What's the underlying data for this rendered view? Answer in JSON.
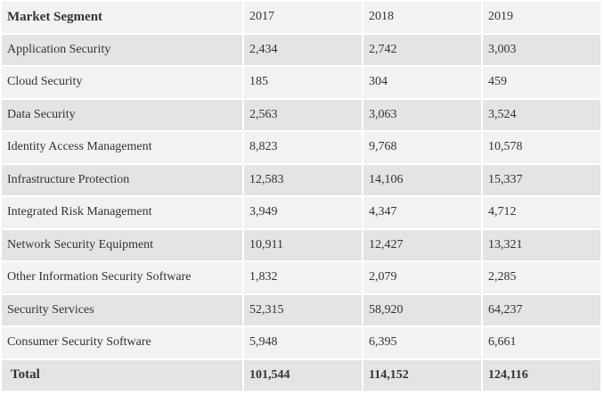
{
  "table": {
    "header": [
      "Market Segment",
      "2017",
      "2018",
      "2019"
    ],
    "rows": [
      [
        "Application Security",
        "2,434",
        "2,742",
        "3,003"
      ],
      [
        "Cloud Security",
        "185",
        "304",
        "459"
      ],
      [
        "Data Security",
        "2,563",
        "3,063",
        "3,524"
      ],
      [
        "Identity Access Management",
        "8,823",
        "9,768",
        "10,578"
      ],
      [
        "Infrastructure Protection",
        "12,583",
        "14,106",
        "15,337"
      ],
      [
        "Integrated Risk Management",
        "3,949",
        "4,347",
        "4,712"
      ],
      [
        "Network Security Equipment",
        "10,911",
        "12,427",
        "13,321"
      ],
      [
        "Other Information Security Software",
        "1,832",
        "2,079",
        "2,285"
      ],
      [
        "Security Services",
        "52,315",
        "58,920",
        "64,237"
      ],
      [
        "Consumer Security Software",
        "5,948",
        "6,395",
        "6,661"
      ]
    ],
    "total": [
      "Total",
      "101,544",
      "114,152",
      "124,116"
    ]
  }
}
